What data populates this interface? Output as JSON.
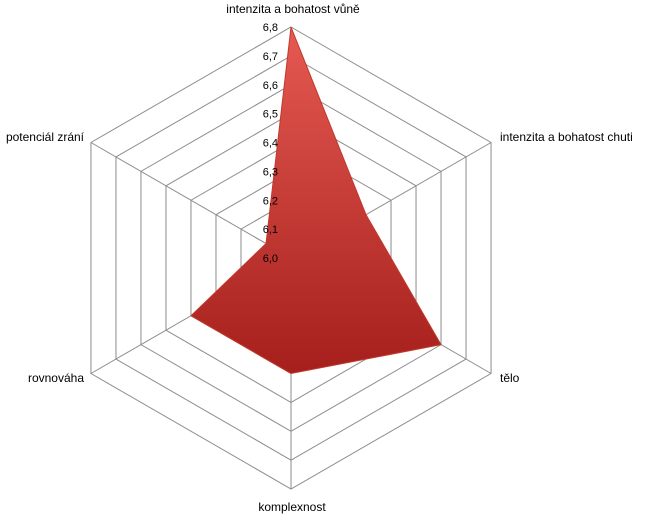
{
  "chart_data": {
    "type": "radar",
    "title": "",
    "categories": [
      "intenzita a bohatost vůně",
      "intenzita a bohatost chuti",
      "tělo",
      "komplexnost",
      "rovnováha",
      "potenciál zrání"
    ],
    "series": [
      {
        "values": [
          6.8,
          6.3,
          6.6,
          6.4,
          6.4,
          6.1
        ],
        "color": "#c0392b"
      }
    ],
    "ticks": [
      "6,0",
      "6,1",
      "6,2",
      "6,3",
      "6,4",
      "6,5",
      "6,6",
      "6,7",
      "6,8"
    ],
    "rlim": [
      6.0,
      6.8
    ],
    "grid": true,
    "legend": "none",
    "fill_color_light": "#e55a52",
    "fill_color_dark": "#a61f1c",
    "grid_color": "#8c8c8c"
  }
}
